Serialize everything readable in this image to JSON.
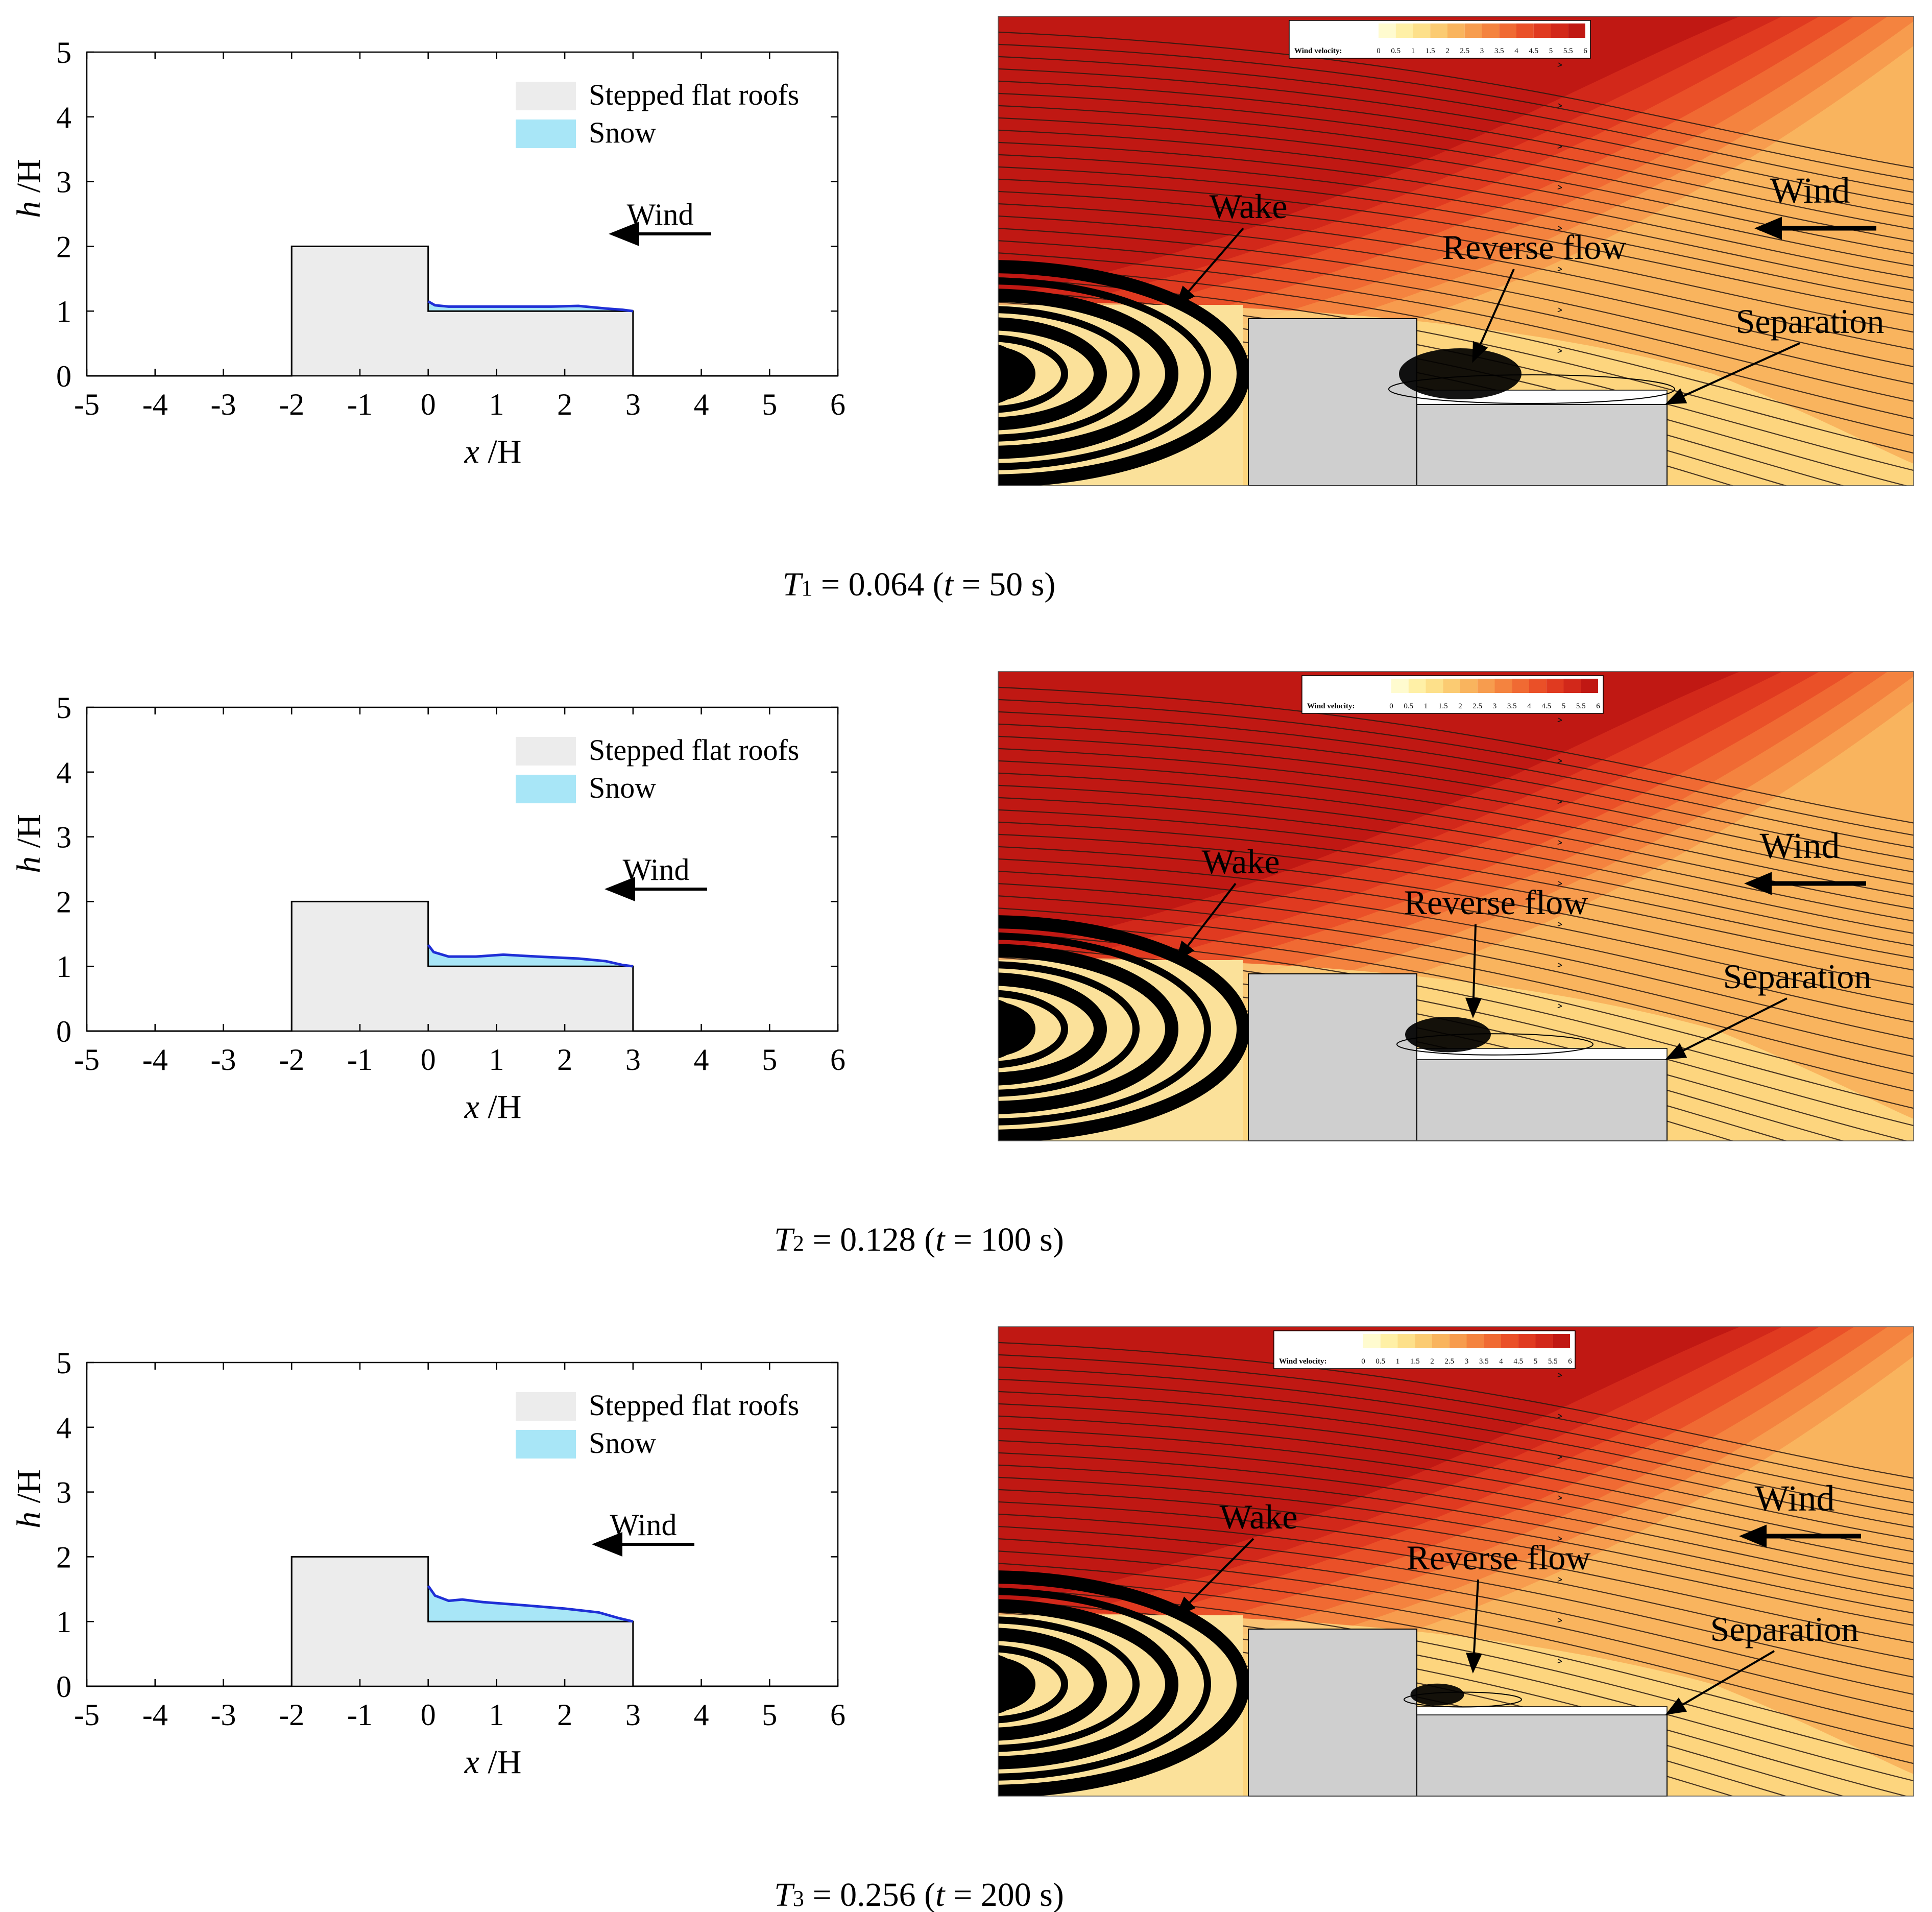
{
  "chart_data": [
    {
      "type": "area",
      "panel": "snow-profile",
      "xlabel_var": "x",
      "xlabel_unit": " /H",
      "ylabel_var": "h",
      "ylabel_unit": " /H",
      "xlim": [
        -5,
        6
      ],
      "ylim": [
        0,
        5
      ],
      "xticks": [
        "-5",
        "-4",
        "-3",
        "-2",
        "-1",
        "0",
        "1",
        "2",
        "3",
        "4",
        "5",
        "6"
      ],
      "yticks": [
        "0",
        "1",
        "2",
        "3",
        "4",
        "5"
      ],
      "legend": [
        "Stepped flat roofs",
        "Snow"
      ],
      "roof_outline": [
        [
          -5,
          0
        ],
        [
          -2,
          0
        ],
        [
          -2,
          2
        ],
        [
          0,
          2
        ],
        [
          0,
          1
        ],
        [
          3,
          1
        ],
        [
          3,
          0
        ],
        [
          6,
          0
        ]
      ],
      "snow_surface": [
        [
          0,
          1.15
        ],
        [
          0.1,
          1.09
        ],
        [
          0.3,
          1.07
        ],
        [
          0.7,
          1.07
        ],
        [
          1.2,
          1.07
        ],
        [
          1.8,
          1.07
        ],
        [
          2.2,
          1.08
        ],
        [
          2.6,
          1.04
        ],
        [
          2.85,
          1.02
        ],
        [
          3.0,
          1.0
        ]
      ],
      "wind_label": "Wind",
      "caption": {
        "var": "T",
        "sub": "1",
        "value": "= 0.064 (",
        "tvar": "t",
        "rest": " = 50 s)"
      }
    },
    {
      "type": "area",
      "panel": "snow-profile",
      "xlabel_var": "x",
      "xlabel_unit": " /H",
      "ylabel_var": "h",
      "ylabel_unit": " /H",
      "xlim": [
        -5,
        6
      ],
      "ylim": [
        0,
        5
      ],
      "xticks": [
        "-5",
        "-4",
        "-3",
        "-2",
        "-1",
        "0",
        "1",
        "2",
        "3",
        "4",
        "5",
        "6"
      ],
      "yticks": [
        "0",
        "1",
        "2",
        "3",
        "4",
        "5"
      ],
      "legend": [
        "Stepped flat roofs",
        "Snow"
      ],
      "roof_outline": [
        [
          -5,
          0
        ],
        [
          -2,
          0
        ],
        [
          -2,
          2
        ],
        [
          0,
          2
        ],
        [
          0,
          1
        ],
        [
          3,
          1
        ],
        [
          3,
          0
        ],
        [
          6,
          0
        ]
      ],
      "snow_surface": [
        [
          0,
          1.33
        ],
        [
          0.08,
          1.22
        ],
        [
          0.3,
          1.15
        ],
        [
          0.7,
          1.15
        ],
        [
          1.1,
          1.18
        ],
        [
          1.6,
          1.15
        ],
        [
          2.2,
          1.12
        ],
        [
          2.6,
          1.08
        ],
        [
          2.85,
          1.02
        ],
        [
          3.0,
          1.0
        ]
      ],
      "wind_label": "Wind",
      "caption": {
        "var": "T",
        "sub": "2",
        "value": "= 0.128 (",
        "tvar": "t",
        "rest": " = 100 s)"
      }
    },
    {
      "type": "area",
      "panel": "snow-profile",
      "xlabel_var": "x",
      "xlabel_unit": " /H",
      "ylabel_var": "h",
      "ylabel_unit": " /H",
      "xlim": [
        -5,
        6
      ],
      "ylim": [
        0,
        5
      ],
      "xticks": [
        "-5",
        "-4",
        "-3",
        "-2",
        "-1",
        "0",
        "1",
        "2",
        "3",
        "4",
        "5",
        "6"
      ],
      "yticks": [
        "0",
        "1",
        "2",
        "3",
        "4",
        "5"
      ],
      "legend": [
        "Stepped flat roofs",
        "Snow"
      ],
      "roof_outline": [
        [
          -5,
          0
        ],
        [
          -2,
          0
        ],
        [
          -2,
          2
        ],
        [
          0,
          2
        ],
        [
          0,
          1
        ],
        [
          3,
          1
        ],
        [
          3,
          0
        ],
        [
          6,
          0
        ]
      ],
      "snow_surface": [
        [
          0,
          1.55
        ],
        [
          0.1,
          1.4
        ],
        [
          0.3,
          1.32
        ],
        [
          0.5,
          1.34
        ],
        [
          0.8,
          1.3
        ],
        [
          1.3,
          1.26
        ],
        [
          2.0,
          1.2
        ],
        [
          2.5,
          1.14
        ],
        [
          2.8,
          1.05
        ],
        [
          3.0,
          1.0
        ]
      ],
      "wind_label": "Wind",
      "caption": {
        "var": "T",
        "sub": "3",
        "value": "= 0.256 (",
        "tvar": "t",
        "rest": " = 200 s)"
      }
    },
    {
      "type": "heatmap",
      "panel": "flow-field",
      "colorbar_title": "Wind velocity:",
      "colorbar_ticks": [
        "0",
        "0.5",
        "1",
        "1.5",
        "2",
        "2.5",
        "3",
        "3.5",
        "4",
        "4.5",
        "5",
        "5.5",
        "6"
      ],
      "colorbar_range": [
        0,
        6
      ],
      "annotations": [
        "Wake",
        "Reverse flow",
        "Separation",
        "Wind"
      ],
      "reverse_vortex_strength": 1.0
    },
    {
      "type": "heatmap",
      "panel": "flow-field",
      "colorbar_title": "Wind velocity:",
      "colorbar_ticks": [
        "0",
        "0.5",
        "1",
        "1.5",
        "2",
        "2.5",
        "3",
        "3.5",
        "4",
        "4.5",
        "5",
        "5.5",
        "6"
      ],
      "colorbar_range": [
        0,
        6
      ],
      "annotations": [
        "Wake",
        "Reverse flow",
        "Separation",
        "Wind"
      ],
      "reverse_vortex_strength": 0.6
    },
    {
      "type": "heatmap",
      "panel": "flow-field",
      "colorbar_title": "Wind velocity:",
      "colorbar_ticks": [
        "0",
        "0.5",
        "1",
        "1.5",
        "2",
        "2.5",
        "3",
        "3.5",
        "4",
        "4.5",
        "5",
        "5.5",
        "6"
      ],
      "colorbar_range": [
        0,
        6
      ],
      "annotations": [
        "Wake",
        "Reverse flow",
        "Separation",
        "Wind"
      ],
      "reverse_vortex_strength": 0.25
    }
  ],
  "colors": {
    "roof_fill": "#ececec",
    "snow_fill": "#a8e6f7",
    "snow_line": "#1f2fd6",
    "axis": "#000000",
    "wake_pale": "#fbe19a",
    "building": "#cfcfcf"
  },
  "colorbar_colors": [
    "#fffbcf",
    "#fff0a6",
    "#fde08a",
    "#fbcb72",
    "#f9b45e",
    "#f79c4e",
    "#f4833f",
    "#f06a33",
    "#ea5028",
    "#e03a20",
    "#d2281a",
    "#c01813"
  ]
}
